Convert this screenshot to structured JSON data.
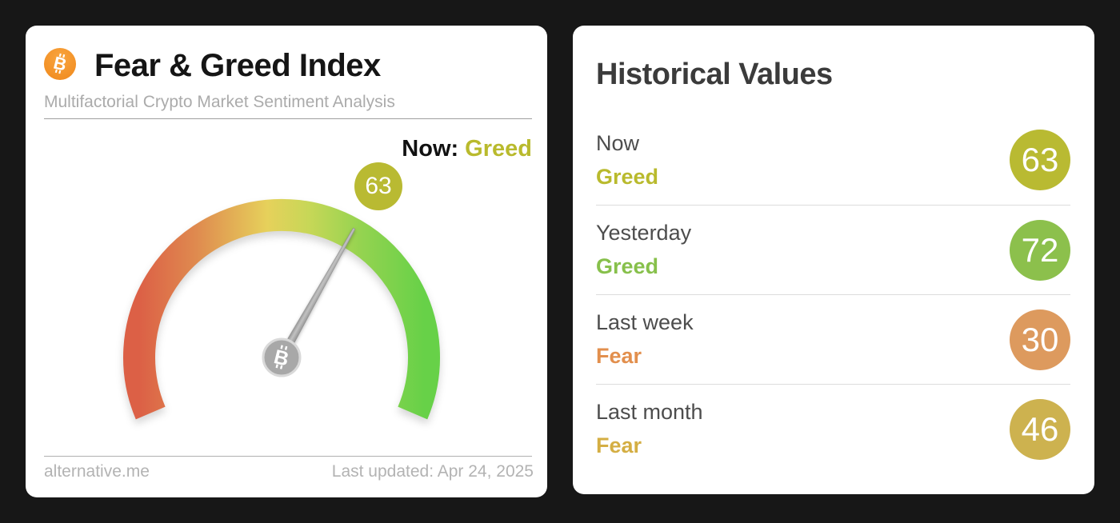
{
  "colors": {
    "page_bg": "#171717",
    "card_bg": "#ffffff",
    "olive": "#b9ba32",
    "olive_text": "#b9ba2d",
    "green": "#8cc04c",
    "green_text": "#87c04b",
    "orange": "#dd9a5e",
    "orange_text": "#e28f4d",
    "gold": "#cdb24f",
    "gold_text": "#d4ae43",
    "bitcoin_orange": "#f7931a",
    "needle_gray": "#9e9e9e"
  },
  "icons": {
    "bitcoin_glyph": "B"
  },
  "left_card": {
    "title": "Fear & Greed Index",
    "subtitle": "Multifactorial Crypto Market Sentiment Analysis",
    "now_label": "Now:",
    "now_value": "Greed",
    "footer_left": "alternative.me",
    "footer_right": "Last updated: Apr 24, 2025"
  },
  "right_card": {
    "title": "Historical Values",
    "rows": [
      {
        "label": "Now",
        "sentiment": "Greed",
        "value": "63",
        "text_color": "#b9ba2d",
        "badge_color": "#b9ba32"
      },
      {
        "label": "Yesterday",
        "sentiment": "Greed",
        "value": "72",
        "text_color": "#87c04b",
        "badge_color": "#8cc04c"
      },
      {
        "label": "Last week",
        "sentiment": "Fear",
        "value": "30",
        "text_color": "#e28f4d",
        "badge_color": "#dd9a5e"
      },
      {
        "label": "Last month",
        "sentiment": "Fear",
        "value": "46",
        "text_color": "#d4ae43",
        "badge_color": "#cdb24f"
      }
    ]
  },
  "chart_data": {
    "type": "gauge",
    "title": "Fear & Greed Index",
    "value": 63,
    "sentiment": "Greed",
    "min": 0,
    "max": 100,
    "start_angle_deg": 203,
    "sweep_deg": 226,
    "scale_colors": [
      "#dc6046",
      "#df8a4f",
      "#e6d15b",
      "#c6d757",
      "#94d350",
      "#67d148"
    ],
    "historical": [
      {
        "period": "Now",
        "sentiment": "Greed",
        "value": 63
      },
      {
        "period": "Yesterday",
        "sentiment": "Greed",
        "value": 72
      },
      {
        "period": "Last week",
        "sentiment": "Fear",
        "value": 30
      },
      {
        "period": "Last month",
        "sentiment": "Fear",
        "value": 46
      }
    ],
    "last_updated": "Apr 24, 2025",
    "source": "alternative.me"
  }
}
